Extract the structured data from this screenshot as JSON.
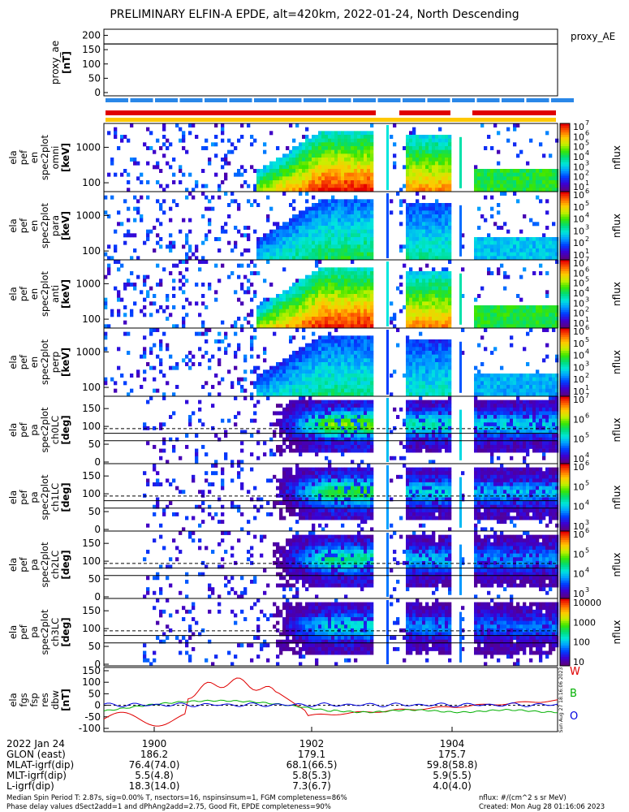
{
  "title": "PRELIMINARY ELFIN-A EPDE, alt=420km, 2022-01-24, North Descending",
  "side_label": "proxy_AE",
  "panel_axis_labels": [
    [
      "proxy_ae",
      "[nT]"
    ],
    [
      "ela",
      "pef",
      "en",
      "spec2plot",
      "omni",
      "[keV]"
    ],
    [
      "ela",
      "pef",
      "en",
      "spec2plot",
      "para",
      "[keV]"
    ],
    [
      "ela",
      "pef",
      "en",
      "spec2plot",
      "anti",
      "[keV]"
    ],
    [
      "ela",
      "pef",
      "en",
      "spec2plot",
      "perp",
      "[keV]"
    ],
    [
      "ela",
      "pef",
      "pa",
      "spec2plot",
      "ch0LC",
      "[deg]"
    ],
    [
      "ela",
      "pef",
      "pa",
      "spec2plot",
      "ch1LC",
      "[deg]"
    ],
    [
      "ela",
      "pef",
      "pa",
      "spec2plot",
      "ch2LC",
      "[deg]"
    ],
    [
      "ela",
      "pef",
      "pa",
      "spec2plot",
      "ch3LC",
      "[deg]"
    ],
    [
      "ela",
      "fgs",
      "fsp",
      "res",
      "dbw",
      "[nT]"
    ]
  ],
  "colorbar_label": "nflux",
  "colorbar_ticks": [
    [
      "10^7",
      "10^6",
      "10^5",
      "10^4",
      "10^3",
      "10^2",
      "10^1"
    ],
    [
      "10^6",
      "10^5",
      "10^4",
      "10^3",
      "10^2",
      "10^1"
    ],
    [
      "10^7",
      "10^6",
      "10^5",
      "10^4",
      "10^3",
      "10^2",
      "10^1"
    ],
    [
      "10^6",
      "10^5",
      "10^4",
      "10^3",
      "10^2",
      "10^1"
    ],
    [
      "10^7",
      "10^6",
      "10^5",
      "10^4"
    ],
    [
      "10^6",
      "10^5",
      "10^4",
      "10^3"
    ],
    [
      "10^6",
      "10^5",
      "10^4",
      "10^3"
    ],
    [
      "10000",
      "1000",
      "100",
      "10"
    ]
  ],
  "wbo_labels": [
    "W",
    "B",
    "O"
  ],
  "time_table": {
    "rows": [
      [
        "2022 Jan 24",
        "1900",
        "1902",
        "1904"
      ],
      [
        "GLON (east)",
        "186.2",
        "179.1",
        "175.7"
      ],
      [
        "MLAT-igrf(dip)",
        "76.4(74.0)",
        "68.1(66.5)",
        "59.8(58.8)"
      ],
      [
        "MLT-igrf(dip)",
        "5.5(4.8)",
        "5.8(5.3)",
        "5.9(5.5)"
      ],
      [
        "L-igrf(dip)",
        "18.3(14.0)",
        "7.3(6.7)",
        "4.0(4.0)"
      ]
    ]
  },
  "footer": {
    "left1": "Median Spin Period T: 2.87s, sig=0.00% T, nsectors=16, nspinsinsum=1, FGM completeness=86%",
    "left2": "Phase delay values dSect2add=1 and dPhAng2add=2.75, Good Fit, EPDE completeness=90%",
    "right1": "nflux: #/(cm^2 s sr MeV)",
    "right2": "Created: Mon Aug 28 01:16:06 2023",
    "vertical_stamp": "Sun Aug 27 18:16:06 2023"
  },
  "chart_data": [
    {
      "type": "line",
      "panel": "proxy_ae",
      "ylabel": "proxy_ae [nT]",
      "ylim": [
        0,
        210
      ],
      "yticks": [
        0,
        50,
        100,
        150,
        200
      ],
      "x_minutes": [
        18.7,
        23.9
      ],
      "series": [
        {
          "values": [
            170,
            170
          ]
        }
      ]
    },
    {
      "type": "heatmap",
      "panel": "energy spectrograms (omni, para, anti, perp)",
      "ylabel": "[keV]",
      "yscale": "log",
      "yticks": [
        100,
        1000
      ],
      "xticks": [
        "1900",
        "1902",
        "1904"
      ],
      "colorscale": "log nflux"
    },
    {
      "type": "heatmap",
      "panel": "pitch-angle spectrograms (ch0LC-ch3LC)",
      "ylabel": "[deg]",
      "ylim": [
        0,
        180
      ],
      "yticks": [
        0,
        50,
        100,
        150
      ],
      "xticks": [
        "1900",
        "1902",
        "1904"
      ],
      "colorscale": "log nflux"
    },
    {
      "type": "line",
      "panel": "ela fgs fsp res dbw",
      "ylabel": "[nT]",
      "ylim": [
        -100,
        150
      ],
      "yticks": [
        -100,
        -50,
        0,
        50,
        100,
        150
      ],
      "series": [
        {
          "name": "W",
          "color": "#e00000"
        },
        {
          "name": "B",
          "color": "#00b000"
        },
        {
          "name": "O",
          "color": "#0000e0"
        }
      ]
    }
  ],
  "colors": {
    "red": "#e00000",
    "green": "#00b000",
    "blue": "#0000e0",
    "bar_blue": "#2a87e8",
    "orange_bar": "#ffc800"
  }
}
